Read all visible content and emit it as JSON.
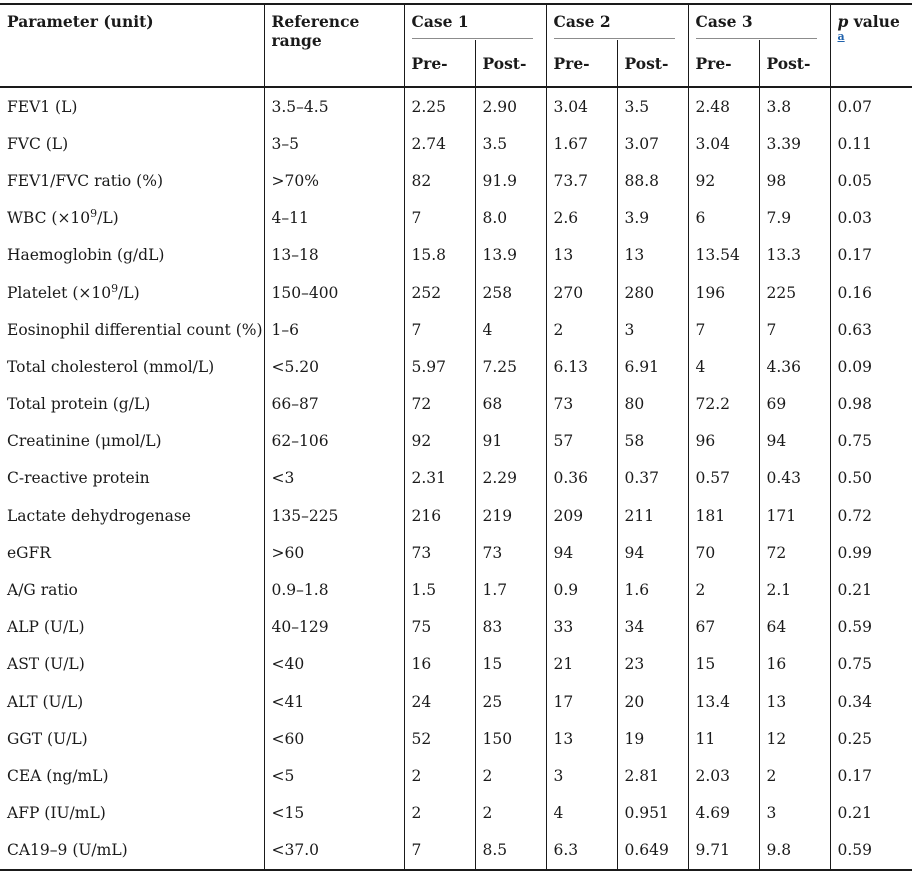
{
  "header": {
    "parameter_label": "Parameter (unit)",
    "reference_label": "Reference range",
    "cases": [
      {
        "label": "Case 1",
        "pre_label": "Pre-",
        "post_label": "Post-"
      },
      {
        "label": "Case 2",
        "pre_label": "Pre-",
        "post_label": "Post-"
      },
      {
        "label": "Case 3",
        "pre_label": "Pre-",
        "post_label": "Post-"
      }
    ],
    "p_value": {
      "italic_part": "p",
      "text_part": " value",
      "footnote_mark": "a"
    }
  },
  "colors": {
    "text": "#1a1a1a",
    "rule": "#1a1a1a",
    "case_underline": "#8c8c8c",
    "footnote_link": "#2062ac",
    "background": "#ffffff"
  },
  "table": {
    "rows": [
      {
        "parameter": "FEV1 (L)",
        "reference": "3.5–4.5",
        "c1_pre": "2.25",
        "c1_post": "2.90",
        "c2_pre": "3.04",
        "c2_post": "3.5",
        "c3_pre": "2.48",
        "c3_post": "3.8",
        "p": "0.07"
      },
      {
        "parameter": "FVC (L)",
        "reference": "3–5",
        "c1_pre": "2.74",
        "c1_post": "3.5",
        "c2_pre": "1.67",
        "c2_post": "3.07",
        "c3_pre": "3.04",
        "c3_post": "3.39",
        "p": "0.11"
      },
      {
        "parameter": "FEV1/FVC ratio (%)",
        "reference": ">70%",
        "c1_pre": "82",
        "c1_post": "91.9",
        "c2_pre": "73.7",
        "c2_post": "88.8",
        "c3_pre": "92",
        "c3_post": "98",
        "p": "0.05"
      },
      {
        "parameter": "WBC (×10^9^/L)",
        "reference": "4–11",
        "c1_pre": "7",
        "c1_post": "8.0",
        "c2_pre": "2.6",
        "c2_post": "3.9",
        "c3_pre": "6",
        "c3_post": "7.9",
        "p": "0.03"
      },
      {
        "parameter": "Haemoglobin (g/dL)",
        "reference": "13–18",
        "c1_pre": "15.8",
        "c1_post": "13.9",
        "c2_pre": "13",
        "c2_post": "13",
        "c3_pre": "13.54",
        "c3_post": "13.3",
        "p": "0.17"
      },
      {
        "parameter": "Platelet (×10^9^/L)",
        "reference": "150–400",
        "c1_pre": "252",
        "c1_post": "258",
        "c2_pre": "270",
        "c2_post": "280",
        "c3_pre": "196",
        "c3_post": "225",
        "p": "0.16"
      },
      {
        "parameter": "Eosinophil differential count (%)",
        "reference": "1–6",
        "c1_pre": "7",
        "c1_post": "4",
        "c2_pre": "2",
        "c2_post": "3",
        "c3_pre": "7",
        "c3_post": "7",
        "p": "0.63"
      },
      {
        "parameter": "Total cholesterol (mmol/L)",
        "reference": "<5.20",
        "c1_pre": "5.97",
        "c1_post": "7.25",
        "c2_pre": "6.13",
        "c2_post": "6.91",
        "c3_pre": "4",
        "c3_post": "4.36",
        "p": "0.09"
      },
      {
        "parameter": "Total protein (g/L)",
        "reference": "66–87",
        "c1_pre": "72",
        "c1_post": "68",
        "c2_pre": "73",
        "c2_post": "80",
        "c3_pre": "72.2",
        "c3_post": "69",
        "p": "0.98"
      },
      {
        "parameter": "Creatinine (μmol/L)",
        "reference": "62–106",
        "c1_pre": "92",
        "c1_post": "91",
        "c2_pre": "57",
        "c2_post": "58",
        "c3_pre": "96",
        "c3_post": "94",
        "p": "0.75"
      },
      {
        "parameter": "C-reactive protein",
        "reference": "<3",
        "c1_pre": "2.31",
        "c1_post": "2.29",
        "c2_pre": "0.36",
        "c2_post": "0.37",
        "c3_pre": "0.57",
        "c3_post": "0.43",
        "p": "0.50"
      },
      {
        "parameter": "Lactate dehydrogenase",
        "reference": "135–225",
        "c1_pre": "216",
        "c1_post": "219",
        "c2_pre": "209",
        "c2_post": "211",
        "c3_pre": "181",
        "c3_post": "171",
        "p": "0.72"
      },
      {
        "parameter": "eGFR",
        "reference": ">60",
        "c1_pre": "73",
        "c1_post": "73",
        "c2_pre": "94",
        "c2_post": "94",
        "c3_pre": "70",
        "c3_post": "72",
        "p": "0.99"
      },
      {
        "parameter": "A/G ratio",
        "reference": "0.9–1.8",
        "c1_pre": "1.5",
        "c1_post": "1.7",
        "c2_pre": "0.9",
        "c2_post": "1.6",
        "c3_pre": "2",
        "c3_post": "2.1",
        "p": "0.21"
      },
      {
        "parameter": "ALP (U/L)",
        "reference": "40–129",
        "c1_pre": "75",
        "c1_post": "83",
        "c2_pre": "33",
        "c2_post": "34",
        "c3_pre": "67",
        "c3_post": "64",
        "p": "0.59"
      },
      {
        "parameter": "AST (U/L)",
        "reference": "<40",
        "c1_pre": "16",
        "c1_post": "15",
        "c2_pre": "21",
        "c2_post": "23",
        "c3_pre": "15",
        "c3_post": "16",
        "p": "0.75"
      },
      {
        "parameter": "ALT (U/L)",
        "reference": "<41",
        "c1_pre": "24",
        "c1_post": "25",
        "c2_pre": "17",
        "c2_post": "20",
        "c3_pre": "13.4",
        "c3_post": "13",
        "p": "0.34"
      },
      {
        "parameter": "GGT (U/L)",
        "reference": "<60",
        "c1_pre": "52",
        "c1_post": "150",
        "c2_pre": "13",
        "c2_post": "19",
        "c3_pre": "11",
        "c3_post": "12",
        "p": "0.25"
      },
      {
        "parameter": "CEA (ng/mL)",
        "reference": "<5",
        "c1_pre": "2",
        "c1_post": "2",
        "c2_pre": "3",
        "c2_post": "2.81",
        "c3_pre": "2.03",
        "c3_post": "2",
        "p": "0.17"
      },
      {
        "parameter": "AFP (IU/mL)",
        "reference": "<15",
        "c1_pre": "2",
        "c1_post": "2",
        "c2_pre": "4",
        "c2_post": "0.951",
        "c3_pre": "4.69",
        "c3_post": "3",
        "p": "0.21"
      },
      {
        "parameter": "CA19–9 (U/mL)",
        "reference": "<37.0",
        "c1_pre": "7",
        "c1_post": "8.5",
        "c2_pre": "6.3",
        "c2_post": "0.649",
        "c3_pre": "9.71",
        "c3_post": "9.8",
        "p": "0.59"
      }
    ]
  }
}
